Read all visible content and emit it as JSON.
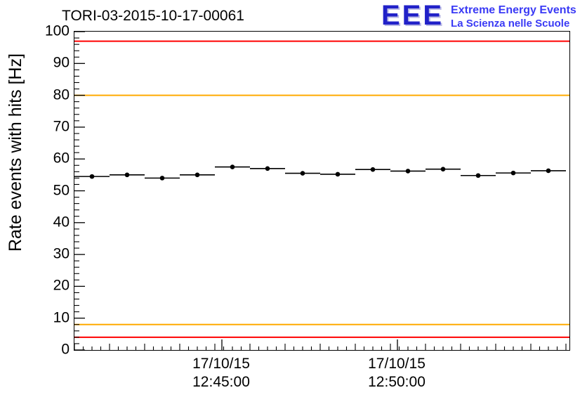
{
  "header": {
    "logo": {
      "acronym": "EEE",
      "line1": "Extreme Energy Events",
      "line2": "La Scienza nelle Scuole",
      "acronym_color": "#2121c8",
      "text_color": "#3a3af5"
    }
  },
  "chart_data": {
    "type": "scatter",
    "title": "TORI-03-2015-10-17-00061",
    "xlabel": "",
    "ylabel": "Rate events with hits [Hz]",
    "ylim": [
      0,
      100
    ],
    "xlim_minutes": [
      0,
      14.1
    ],
    "grid": false,
    "legend": "none",
    "y_ticks": [
      0,
      10,
      20,
      30,
      40,
      50,
      60,
      70,
      80,
      90,
      100
    ],
    "y_minor_step": 2,
    "x_minor_step_minutes": 0.25,
    "x_mid_step_minutes": 1,
    "x_ticks": [
      {
        "pos_minutes": 4.2,
        "date": "17/10/15",
        "time": "12:45:00"
      },
      {
        "pos_minutes": 9.2,
        "date": "17/10/15",
        "time": "12:50:00"
      }
    ],
    "thresholds": [
      {
        "value": 97,
        "color": "#ff0000"
      },
      {
        "value": 80,
        "color": "#ffaa00"
      },
      {
        "value": 8,
        "color": "#ffaa00"
      },
      {
        "value": 4,
        "color": "#ff0000"
      }
    ],
    "frame_color": "#000000",
    "series": [
      {
        "name": "Rate events with hits",
        "marker_color": "#000000",
        "x_error_minutes": 0.5,
        "y_error_hz": 0.6,
        "points": [
          {
            "x_minutes": 0.5,
            "y_hz": 54.5
          },
          {
            "x_minutes": 1.5,
            "y_hz": 55.0
          },
          {
            "x_minutes": 2.5,
            "y_hz": 54.0
          },
          {
            "x_minutes": 3.5,
            "y_hz": 55.0
          },
          {
            "x_minutes": 4.5,
            "y_hz": 57.5
          },
          {
            "x_minutes": 5.5,
            "y_hz": 57.0
          },
          {
            "x_minutes": 6.5,
            "y_hz": 55.5
          },
          {
            "x_minutes": 7.5,
            "y_hz": 55.2
          },
          {
            "x_minutes": 8.5,
            "y_hz": 56.7
          },
          {
            "x_minutes": 9.5,
            "y_hz": 56.2
          },
          {
            "x_minutes": 10.5,
            "y_hz": 56.8
          },
          {
            "x_minutes": 11.5,
            "y_hz": 54.8
          },
          {
            "x_minutes": 12.5,
            "y_hz": 55.6
          },
          {
            "x_minutes": 13.5,
            "y_hz": 56.3
          }
        ]
      }
    ]
  }
}
